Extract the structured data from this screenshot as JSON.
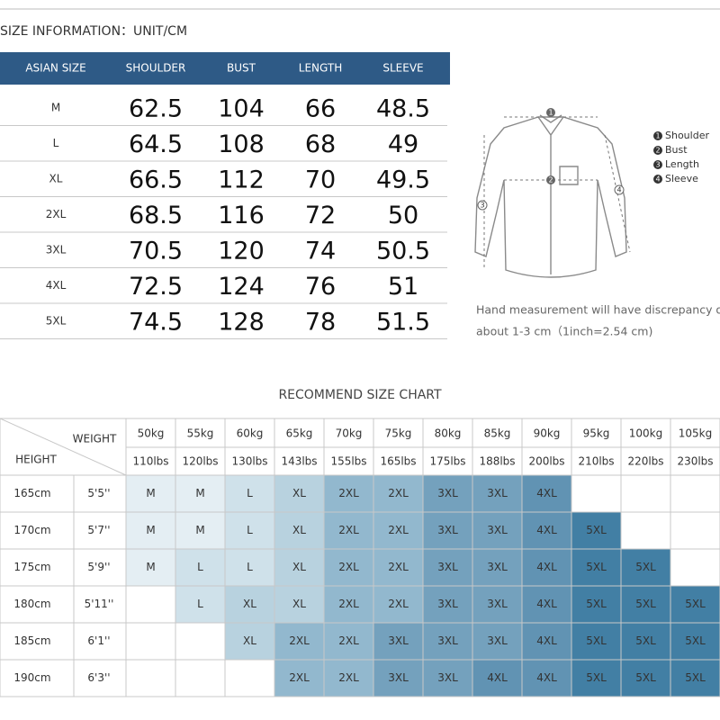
{
  "header": {
    "title": "SIZE INFORMATION：UNIT/CM"
  },
  "size_table": {
    "header_color": "#2e5a86",
    "columns": [
      "ASIAN SIZE",
      "SHOULDER",
      "BUST",
      "LENGTH",
      "SLEEVE"
    ],
    "rows": [
      [
        "M",
        "62.5",
        "104",
        "66",
        "48.5"
      ],
      [
        "L",
        "64.5",
        "108",
        "68",
        "49"
      ],
      [
        "XL",
        "66.5",
        "112",
        "70",
        "49.5"
      ],
      [
        "2XL",
        "68.5",
        "116",
        "72",
        "50"
      ],
      [
        "3XL",
        "70.5",
        "120",
        "74",
        "50.5"
      ],
      [
        "4XL",
        "72.5",
        "124",
        "76",
        "51"
      ],
      [
        "5XL",
        "74.5",
        "128",
        "78",
        "51.5"
      ]
    ]
  },
  "diagram": {
    "legend": [
      {
        "number": "1",
        "label": "Shoulder"
      },
      {
        "number": "2",
        "label": "Bust"
      },
      {
        "number": "3",
        "label": "Length"
      },
      {
        "number": "4",
        "label": "Sleeve"
      }
    ],
    "note": [
      "Hand measurement will have discrepancy of",
      "about 1-3 cm（1inch=2.54 cm)"
    ]
  },
  "recommend": {
    "title": "RECOMMEND SIZE CHART",
    "weight_label": "WEIGHT",
    "height_label": "HEIGHT",
    "size_colors": [
      "#e4eef3",
      "#cfe1ea",
      "#b8d2df",
      "#92b8ce",
      "#74a1bd",
      "#6193b3",
      "#427fa4"
    ],
    "weights_kg": [
      "50kg",
      "55kg",
      "60kg",
      "65kg",
      "70kg",
      "75kg",
      "80kg",
      "85kg",
      "90kg",
      "95kg",
      "100kg",
      "105kg"
    ],
    "weights_lbs": [
      "110lbs",
      "120lbs",
      "130lbs",
      "143lbs",
      "155lbs",
      "165lbs",
      "175lbs",
      "188lbs",
      "200lbs",
      "210lbs",
      "220lbs",
      "230lbs"
    ],
    "rows": [
      {
        "cm": "165cm",
        "ft": "5'5''",
        "sizes": [
          "M",
          "M",
          "L",
          "XL",
          "2XL",
          "2XL",
          "3XL",
          "3XL",
          "4XL",
          null,
          null,
          null
        ]
      },
      {
        "cm": "170cm",
        "ft": "5'7''",
        "sizes": [
          "M",
          "M",
          "L",
          "XL",
          "2XL",
          "2XL",
          "3XL",
          "3XL",
          "4XL",
          "5XL",
          null,
          null
        ]
      },
      {
        "cm": "175cm",
        "ft": "5'9''",
        "sizes": [
          "M",
          "L",
          "L",
          "XL",
          "2XL",
          "2XL",
          "3XL",
          "3XL",
          "4XL",
          "5XL",
          "5XL",
          null
        ]
      },
      {
        "cm": "180cm",
        "ft": "5'11''",
        "sizes": [
          null,
          "L",
          "XL",
          "XL",
          "2XL",
          "2XL",
          "3XL",
          "3XL",
          "4XL",
          "5XL",
          "5XL",
          "5XL"
        ]
      },
      {
        "cm": "185cm",
        "ft": "6'1''",
        "sizes": [
          null,
          null,
          "XL",
          "2XL",
          "2XL",
          "3XL",
          "3XL",
          "3XL",
          "4XL",
          "5XL",
          "5XL",
          "5XL"
        ]
      },
      {
        "cm": "190cm",
        "ft": "6'3''",
        "sizes": [
          null,
          null,
          null,
          "2XL",
          "2XL",
          "3XL",
          "3XL",
          "4XL",
          "4XL",
          "5XL",
          "5XL",
          "5XL"
        ]
      }
    ]
  }
}
